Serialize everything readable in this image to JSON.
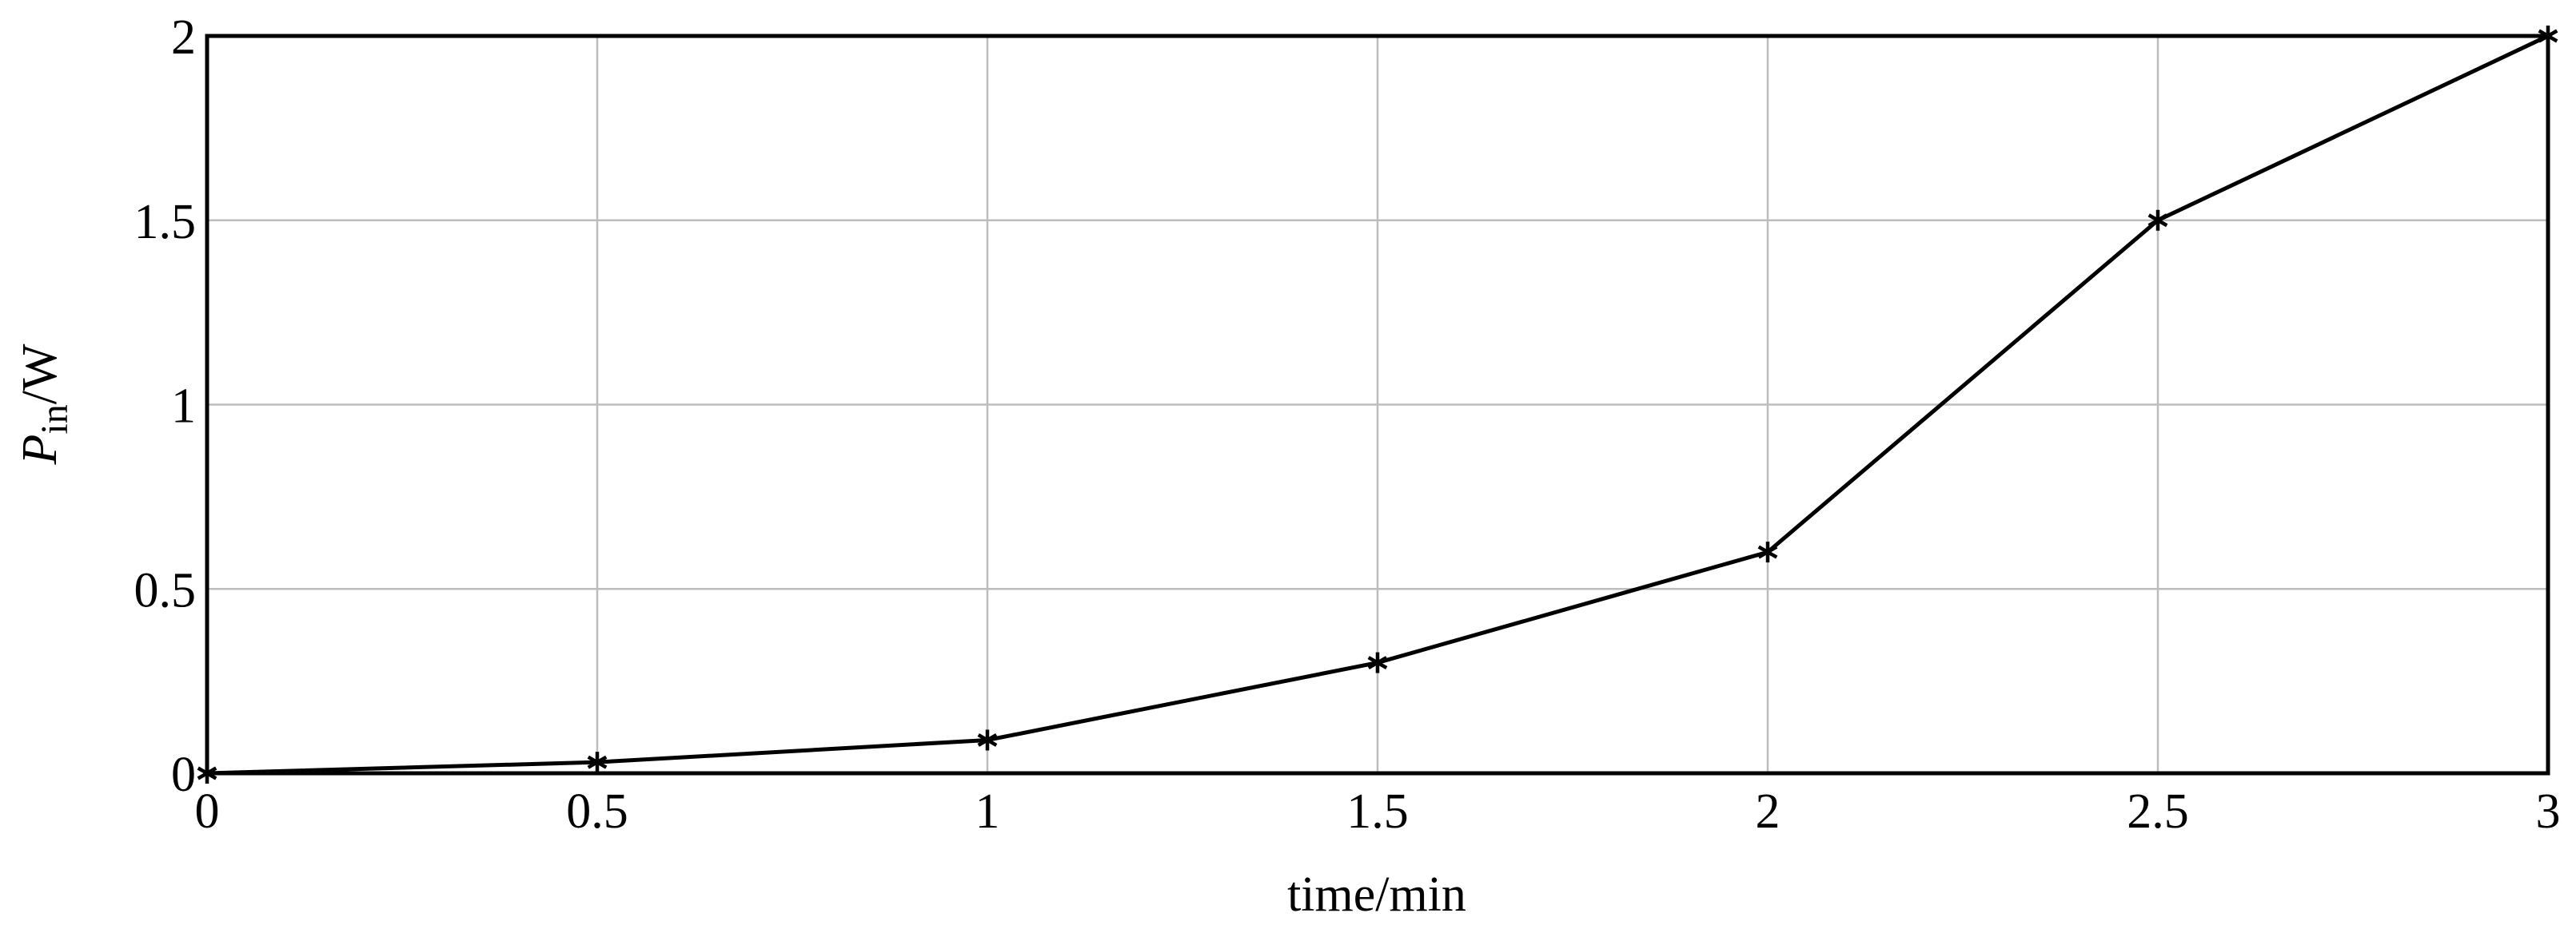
{
  "chart_data": {
    "type": "line",
    "x_label": "time/min",
    "y_label": {
      "symbol": "P",
      "subscript": "in",
      "unit": "/W"
    },
    "x": [
      0,
      0.5,
      1,
      1.5,
      2,
      2.5,
      3
    ],
    "series": [
      {
        "color": "#000000",
        "marker": "asterisk",
        "values": [
          0,
          0.03,
          0.09,
          0.3,
          0.6,
          1.5,
          2
        ]
      }
    ],
    "xlim": [
      0,
      3
    ],
    "ylim": [
      0,
      2
    ],
    "xticks": [
      0,
      0.5,
      1,
      1.5,
      2,
      2.5,
      3
    ],
    "yticks": [
      0,
      0.5,
      1,
      1.5,
      2
    ],
    "grid": true
  }
}
